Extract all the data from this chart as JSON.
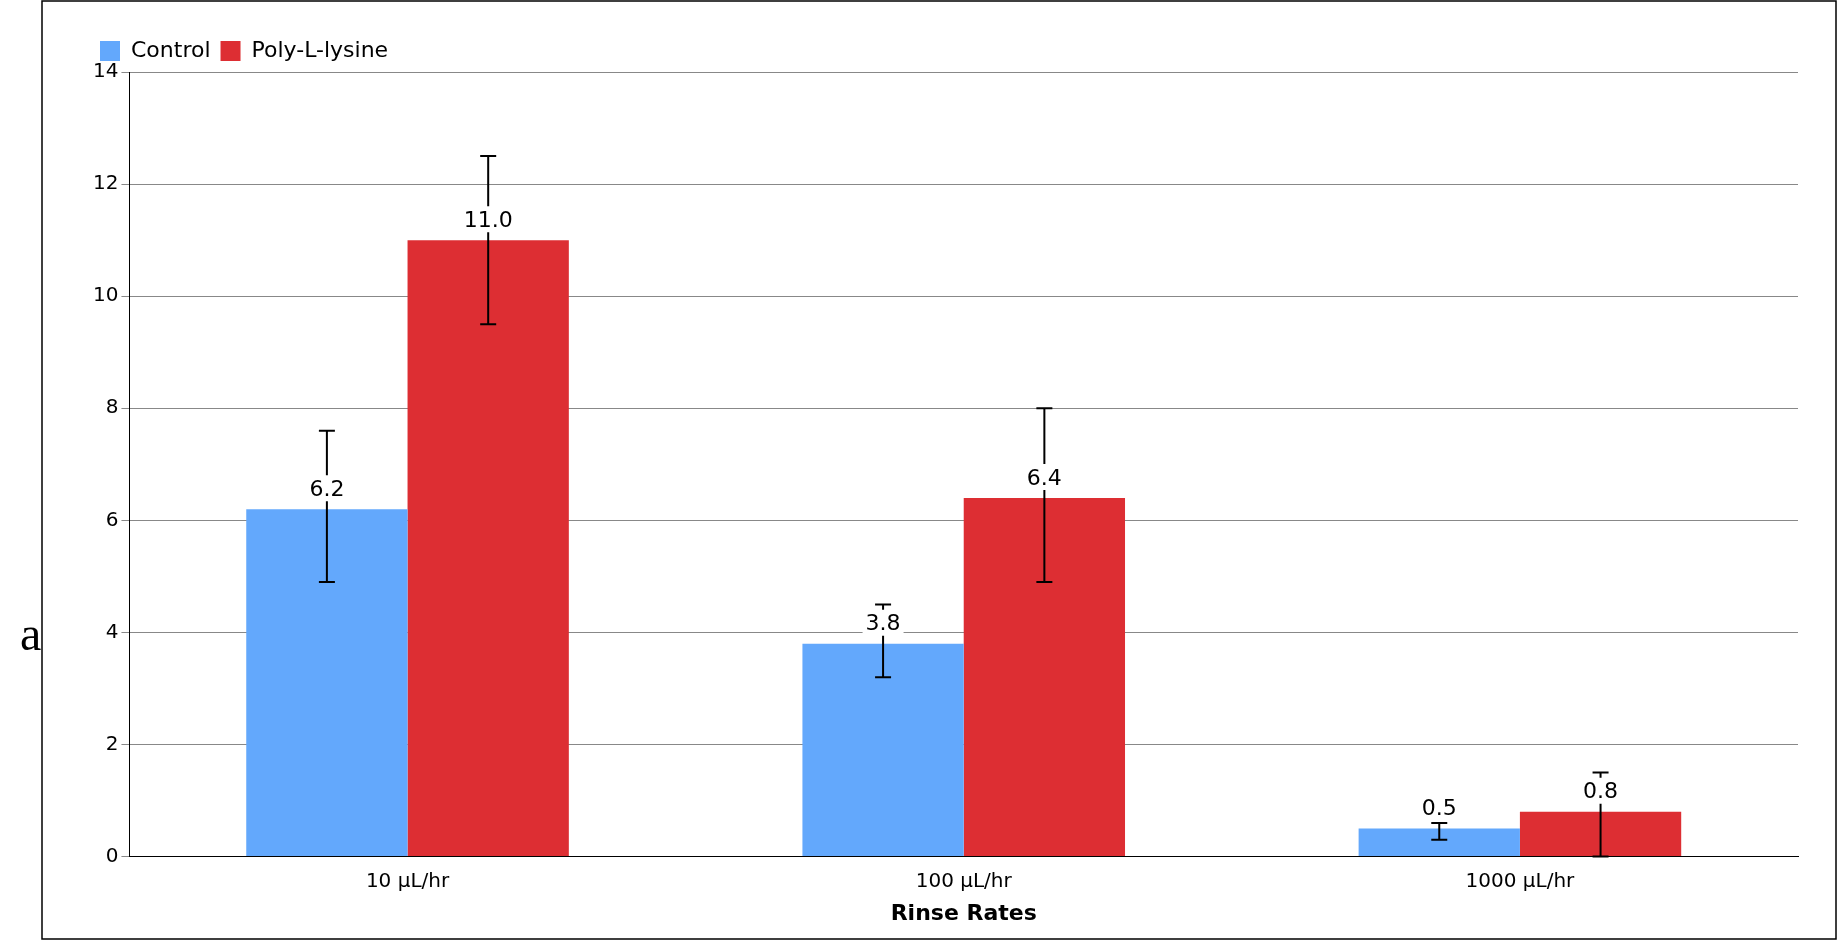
{
  "chart_data": {
    "type": "bar",
    "xlabel": "Rinse Rates",
    "categories": [
      "10 µL/hr",
      "100 µL/hr",
      "1000 µL/hr"
    ],
    "series": [
      {
        "name": "Control",
        "color": "#63a8fc",
        "values": [
          6.2,
          3.8,
          0.5
        ],
        "value_labels": [
          "6.2",
          "3.8",
          "0.5"
        ],
        "errors": [
          [
            4.9,
            7.6
          ],
          [
            3.2,
            4.5
          ],
          [
            0.3,
            0.6
          ]
        ]
      },
      {
        "name": "Poly-L-lysine",
        "color": "#dd2e33",
        "values": [
          11.0,
          6.4,
          0.8
        ],
        "value_labels": [
          "11.0",
          "6.4",
          "0.8"
        ],
        "errors": [
          [
            9.5,
            12.5
          ],
          [
            4.9,
            8.0
          ],
          [
            0.0,
            1.5
          ]
        ]
      }
    ],
    "ylim": [
      0,
      14
    ],
    "yticks": [
      0,
      2,
      4,
      6,
      8,
      10,
      12,
      14
    ],
    "grid": "y",
    "legend": "top left",
    "annotations": [
      "a"
    ]
  }
}
